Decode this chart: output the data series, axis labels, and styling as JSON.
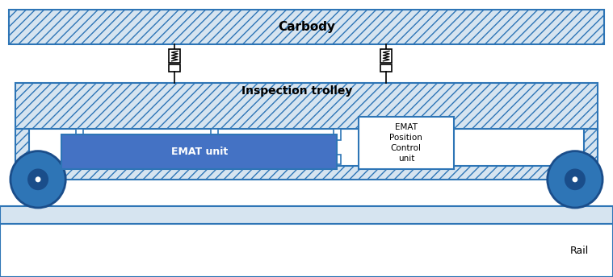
{
  "fig_width": 7.59,
  "fig_height": 3.44,
  "dpi": 100,
  "bg_color": "#ffffff",
  "carbody_color": "#d6e4f0",
  "carbody_hatch": "///",
  "carbody_border": "#2e75b6",
  "trolley_color": "#d6e4f0",
  "trolley_hatch": "///",
  "trolley_border": "#2e75b6",
  "emat_unit_color": "#4472c4",
  "emat_unit_border": "#2e75b6",
  "control_unit_color": "#ffffff",
  "control_unit_border": "#2e75b6",
  "rail_color": "#d6e4f0",
  "rail_border": "#2e75b6",
  "wheel_color": "#2e75b6",
  "wheel_border": "#1a4d8a",
  "inner_frame_color": "#ffffff",
  "inner_frame_border": "#2e75b6",
  "carbody_label": "Carbody",
  "trolley_label": "Inspection trolley",
  "emat_unit_label": "EMAT unit",
  "control_unit_label": "EMAT\nPosition\nControl\nunit",
  "rail_label": "Rail"
}
